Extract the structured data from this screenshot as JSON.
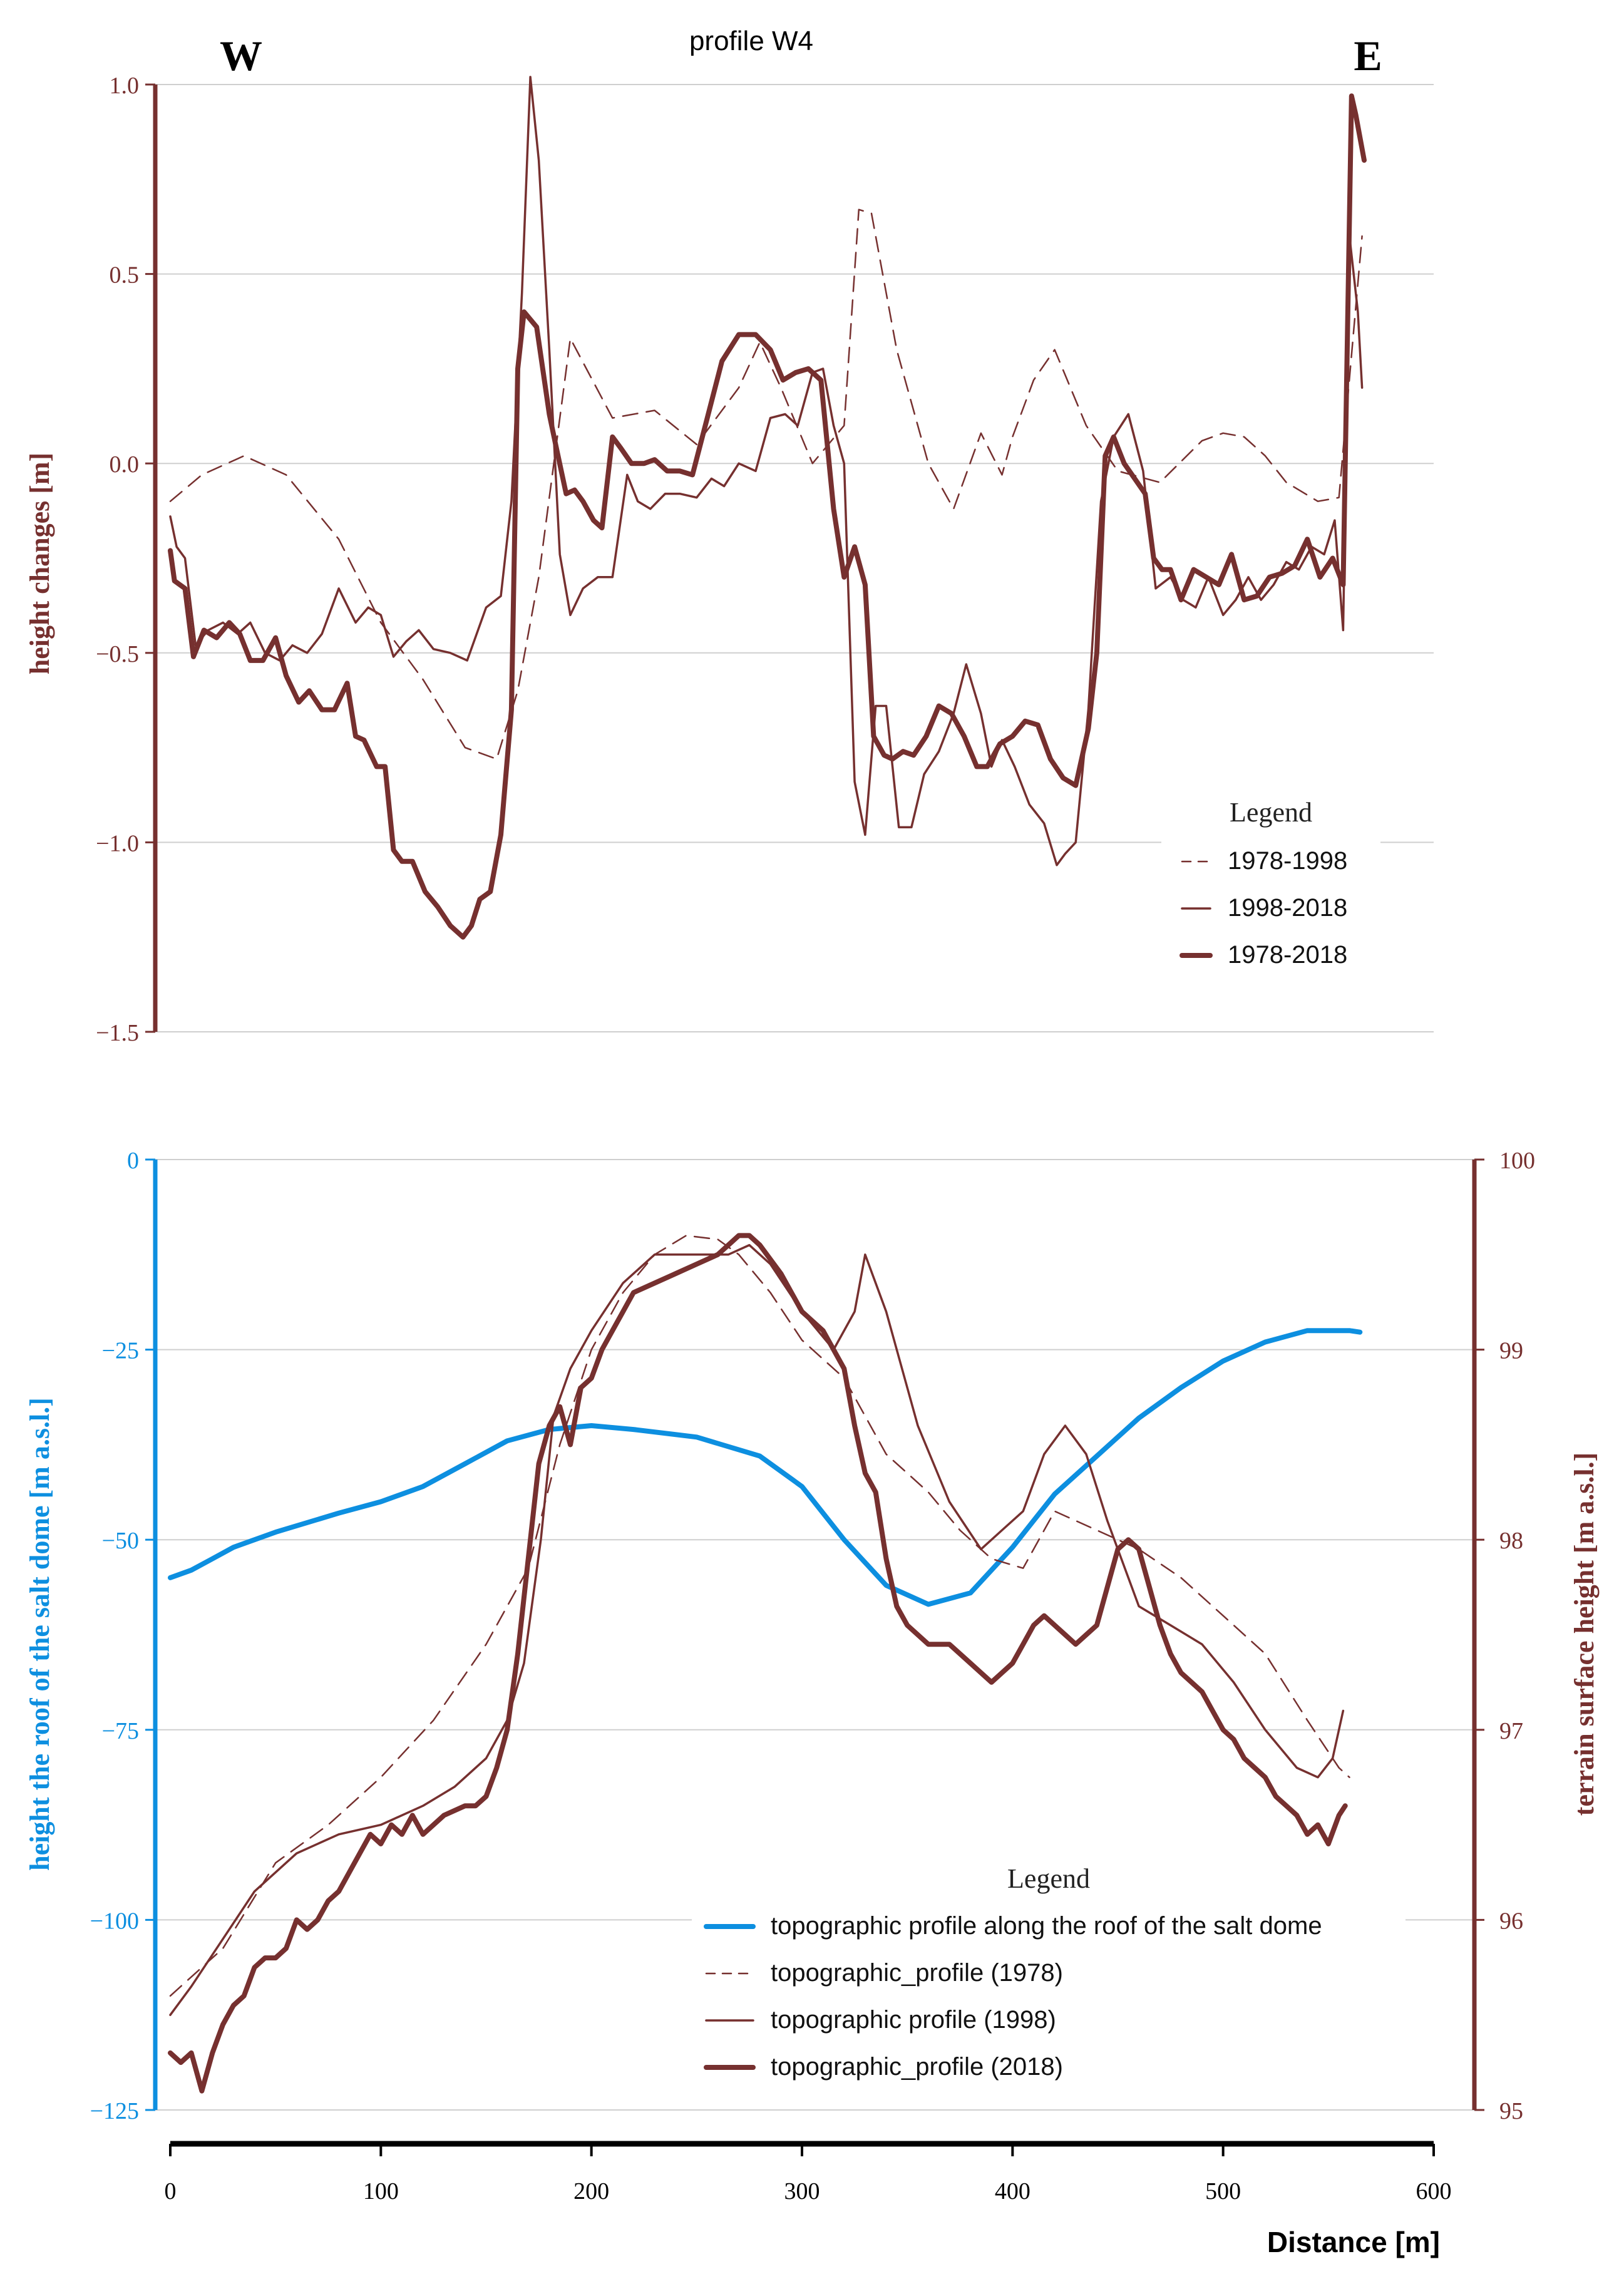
{
  "colors": {
    "brown": "#76302f",
    "blue": "#0d8fe0",
    "grid": "#cfcfcf",
    "axis": "#000000"
  },
  "chart_data": [
    {
      "type": "line",
      "title": "profile W4",
      "corner_left": "W",
      "corner_right": "E",
      "xlabel": "",
      "ylabel": "height changes [m]",
      "xlim": [
        0,
        600
      ],
      "ylim": [
        -1.5,
        1.0
      ],
      "yticks": [
        1.0,
        0.5,
        0.0,
        -0.5,
        -1.0,
        -1.5
      ],
      "ytick_labels": [
        "1.0",
        "0.5",
        "0.0",
        "−0.5",
        "−1.0",
        "−1.5"
      ],
      "legend": {
        "title": "Legend",
        "position": "lower-right"
      },
      "series": [
        {
          "name": "1978-1998",
          "style": "dashed",
          "x": [
            0,
            15,
            35,
            55,
            80,
            100,
            120,
            140,
            155,
            165,
            175,
            190,
            210,
            230,
            250,
            270,
            280,
            290,
            305,
            320,
            327,
            333,
            345,
            360,
            372,
            385,
            395,
            400,
            410,
            420,
            435,
            450,
            470,
            490,
            500,
            510,
            520,
            530,
            545,
            555,
            562,
            566
          ],
          "y": [
            -0.1,
            -0.03,
            0.02,
            -0.03,
            -0.2,
            -0.42,
            -0.57,
            -0.75,
            -0.78,
            -0.6,
            -0.3,
            0.33,
            0.12,
            0.14,
            0.05,
            0.2,
            0.32,
            0.2,
            0.0,
            0.1,
            0.67,
            0.66,
            0.3,
            0.0,
            -0.12,
            0.08,
            -0.03,
            0.07,
            0.22,
            0.3,
            0.1,
            -0.02,
            -0.05,
            0.06,
            0.08,
            0.07,
            0.02,
            -0.05,
            -0.1,
            -0.09,
            0.35,
            0.6
          ]
        },
        {
          "name": "1998-2018",
          "style": "solid",
          "x": [
            0,
            3,
            7,
            12,
            18,
            25,
            32,
            38,
            45,
            52,
            58,
            65,
            72,
            80,
            88,
            94,
            100,
            106,
            112,
            118,
            125,
            133,
            141,
            150,
            157,
            162,
            167,
            171,
            175,
            180,
            185,
            190,
            196,
            203,
            210,
            217,
            222,
            228,
            235,
            242,
            250,
            257,
            263,
            270,
            278,
            285,
            292,
            298,
            305,
            310,
            315,
            320,
            325,
            330,
            335,
            340,
            346,
            352,
            358,
            365,
            372,
            378,
            385,
            390,
            395,
            401,
            408,
            415,
            421,
            425,
            430,
            436,
            442,
            448,
            455,
            462,
            468,
            475,
            481,
            487,
            493,
            500,
            506,
            512,
            518,
            524,
            530,
            536,
            542,
            548,
            553,
            557,
            560,
            564,
            566
          ],
          "y": [
            -0.14,
            -0.22,
            -0.25,
            -0.48,
            -0.44,
            -0.42,
            -0.45,
            -0.42,
            -0.5,
            -0.52,
            -0.48,
            -0.5,
            -0.45,
            -0.33,
            -0.42,
            -0.38,
            -0.4,
            -0.51,
            -0.47,
            -0.44,
            -0.49,
            -0.5,
            -0.52,
            -0.38,
            -0.35,
            -0.1,
            0.45,
            1.02,
            0.8,
            0.3,
            -0.24,
            -0.4,
            -0.33,
            -0.3,
            -0.3,
            -0.03,
            -0.1,
            -0.12,
            -0.08,
            -0.08,
            -0.09,
            -0.04,
            -0.06,
            0.0,
            -0.02,
            0.12,
            0.13,
            0.1,
            0.24,
            0.25,
            0.1,
            0.0,
            -0.84,
            -0.98,
            -0.64,
            -0.64,
            -0.96,
            -0.96,
            -0.82,
            -0.76,
            -0.66,
            -0.53,
            -0.66,
            -0.8,
            -0.73,
            -0.8,
            -0.9,
            -0.95,
            -1.06,
            -1.03,
            -1.0,
            -0.65,
            -0.1,
            0.07,
            0.13,
            -0.02,
            -0.33,
            -0.3,
            -0.36,
            -0.38,
            -0.3,
            -0.4,
            -0.36,
            -0.3,
            -0.36,
            -0.32,
            -0.26,
            -0.28,
            -0.22,
            -0.24,
            -0.15,
            -0.44,
            0.6,
            0.4,
            0.2
          ]
        },
        {
          "name": "1978-2018",
          "style": "bold",
          "x": [
            0,
            2,
            7,
            11,
            16,
            22,
            28,
            33,
            38,
            44,
            50,
            55,
            61,
            66,
            72,
            78,
            84,
            88,
            92,
            98,
            102,
            106,
            110,
            115,
            121,
            127,
            133,
            139,
            143,
            147,
            152,
            157,
            162,
            165,
            168,
            171,
            174,
            180,
            183,
            188,
            192,
            196,
            201,
            205,
            210,
            214,
            219,
            225,
            230,
            236,
            242,
            248,
            255,
            262,
            270,
            278,
            285,
            291,
            297,
            303,
            309,
            315,
            320,
            325,
            330,
            334,
            339,
            343,
            348,
            353,
            359,
            365,
            371,
            377,
            383,
            388,
            394,
            400,
            406,
            412,
            418,
            424,
            430,
            436,
            440,
            444,
            448,
            453,
            458,
            463,
            467,
            471,
            475,
            480,
            486,
            492,
            498,
            504,
            510,
            516,
            522,
            528,
            534,
            540,
            546,
            552,
            557,
            561,
            563,
            567
          ],
          "y": [
            -0.23,
            -0.31,
            -0.33,
            -0.51,
            -0.44,
            -0.46,
            -0.42,
            -0.45,
            -0.52,
            -0.52,
            -0.46,
            -0.56,
            -0.63,
            -0.6,
            -0.65,
            -0.65,
            -0.58,
            -0.72,
            -0.73,
            -0.8,
            -0.8,
            -1.02,
            -1.05,
            -1.05,
            -1.13,
            -1.17,
            -1.22,
            -1.25,
            -1.22,
            -1.15,
            -1.13,
            -0.98,
            -0.65,
            0.25,
            0.4,
            0.38,
            0.36,
            0.13,
            0.05,
            -0.08,
            -0.07,
            -0.1,
            -0.15,
            -0.17,
            0.07,
            0.04,
            0.0,
            0.0,
            0.01,
            -0.02,
            -0.02,
            -0.03,
            0.12,
            0.27,
            0.34,
            0.34,
            0.3,
            0.22,
            0.24,
            0.25,
            0.22,
            -0.12,
            -0.3,
            -0.22,
            -0.32,
            -0.72,
            -0.77,
            -0.78,
            -0.76,
            -0.77,
            -0.72,
            -0.64,
            -0.66,
            -0.72,
            -0.8,
            -0.8,
            -0.74,
            -0.72,
            -0.68,
            -0.69,
            -0.78,
            -0.83,
            -0.85,
            -0.7,
            -0.5,
            0.02,
            0.07,
            0.0,
            -0.04,
            -0.08,
            -0.25,
            -0.28,
            -0.28,
            -0.36,
            -0.28,
            -0.3,
            -0.32,
            -0.24,
            -0.36,
            -0.35,
            -0.3,
            -0.29,
            -0.27,
            -0.2,
            -0.3,
            -0.25,
            -0.32,
            0.97,
            0.92,
            0.8
          ]
        }
      ]
    },
    {
      "type": "line",
      "xlabel": "Distance [m]",
      "xlim": [
        0,
        600
      ],
      "xticks": [
        0,
        100,
        200,
        300,
        400,
        500,
        600
      ],
      "ylabel_left": "height the roof of the salt dome [m a.s.l.]",
      "ylim_left": [
        -125,
        0
      ],
      "yticks_left": [
        0,
        -25,
        -50,
        -75,
        -100,
        -125
      ],
      "ytick_labels_left": [
        "0",
        "−25",
        "−50",
        "−75",
        "−100",
        "−125"
      ],
      "ylabel_right": "terrain surface height [m a.s.l.]",
      "ylim_right": [
        95,
        100
      ],
      "yticks_right": [
        100,
        99,
        98,
        97,
        96,
        95
      ],
      "legend": {
        "title": "Legend",
        "position": "lower-right"
      },
      "series": [
        {
          "name": "topographic profile along the roof of the salt dome",
          "axis": "left",
          "style": "blue",
          "x": [
            0,
            10,
            20,
            30,
            50,
            80,
            100,
            120,
            140,
            160,
            180,
            200,
            220,
            250,
            280,
            300,
            320,
            340,
            360,
            380,
            400,
            420,
            440,
            460,
            480,
            500,
            520,
            540,
            560,
            565
          ],
          "y": [
            -55,
            -54,
            -52.5,
            -51,
            -49,
            -46.5,
            -45,
            -43,
            -40,
            -37,
            -35.5,
            -35,
            -35.5,
            -36.5,
            -39,
            -43,
            -50,
            -56,
            -58.5,
            -57,
            -51,
            -44,
            -39,
            -34,
            -30,
            -26.5,
            -24,
            -22.5,
            -22.5,
            -22.7
          ]
        },
        {
          "name": "topographic_profile (1978)",
          "axis": "right",
          "style": "dashed",
          "x": [
            0,
            25,
            50,
            75,
            100,
            125,
            150,
            170,
            185,
            200,
            215,
            230,
            245,
            260,
            270,
            285,
            300,
            320,
            340,
            360,
            375,
            390,
            405,
            420,
            440,
            460,
            480,
            500,
            520,
            540,
            555,
            560
          ],
          "y": [
            95.6,
            95.85,
            96.3,
            96.5,
            96.75,
            97.05,
            97.45,
            97.85,
            98.5,
            99.0,
            99.3,
            99.5,
            99.6,
            99.58,
            99.5,
            99.3,
            99.05,
            98.85,
            98.45,
            98.25,
            98.05,
            97.9,
            97.85,
            98.15,
            98.05,
            97.95,
            97.8,
            97.6,
            97.4,
            97.05,
            96.8,
            96.75
          ]
        },
        {
          "name": "topographic profile (1998)",
          "axis": "right",
          "style": "solid",
          "x": [
            0,
            10,
            25,
            40,
            60,
            80,
            100,
            120,
            135,
            150,
            160,
            168,
            176,
            182,
            190,
            200,
            215,
            230,
            250,
            265,
            275,
            285,
            300,
            315,
            325,
            330,
            340,
            355,
            370,
            385,
            395,
            405,
            415,
            425,
            435,
            445,
            460,
            475,
            490,
            505,
            520,
            535,
            545,
            552,
            557
          ],
          "y": [
            95.5,
            95.65,
            95.9,
            96.15,
            96.35,
            96.45,
            96.5,
            96.6,
            96.7,
            96.85,
            97.05,
            97.35,
            98.0,
            98.65,
            98.9,
            99.1,
            99.35,
            99.5,
            99.5,
            99.5,
            99.55,
            99.45,
            99.2,
            99.0,
            99.2,
            99.5,
            99.2,
            98.6,
            98.2,
            97.95,
            98.05,
            98.15,
            98.45,
            98.6,
            98.45,
            98.1,
            97.65,
            97.55,
            97.45,
            97.25,
            97.0,
            96.8,
            96.75,
            96.85,
            97.1
          ]
        },
        {
          "name": "topographic_profile (2018)",
          "axis": "right",
          "style": "bold",
          "x": [
            0,
            5,
            10,
            15,
            20,
            25,
            30,
            35,
            40,
            45,
            50,
            55,
            60,
            65,
            70,
            75,
            80,
            85,
            90,
            95,
            100,
            105,
            110,
            115,
            120,
            130,
            140,
            145,
            150,
            155,
            160,
            165,
            170,
            175,
            180,
            185,
            190,
            195,
            200,
            205,
            210,
            215,
            220,
            230,
            240,
            250,
            260,
            265,
            270,
            275,
            280,
            290,
            300,
            310,
            320,
            325,
            330,
            335,
            340,
            345,
            350,
            360,
            370,
            380,
            390,
            395,
            400,
            405,
            410,
            415,
            420,
            425,
            430,
            435,
            440,
            445,
            450,
            455,
            460,
            465,
            470,
            475,
            480,
            485,
            490,
            495,
            500,
            505,
            510,
            515,
            520,
            525,
            530,
            535,
            540,
            545,
            550,
            555,
            558
          ],
          "y": [
            95.3,
            95.25,
            95.3,
            95.1,
            95.3,
            95.45,
            95.55,
            95.6,
            95.75,
            95.8,
            95.8,
            95.85,
            96.0,
            95.95,
            96.0,
            96.1,
            96.15,
            96.25,
            96.35,
            96.45,
            96.4,
            96.5,
            96.45,
            96.55,
            96.45,
            96.55,
            96.6,
            96.6,
            96.65,
            96.8,
            97.0,
            97.4,
            97.9,
            98.4,
            98.6,
            98.7,
            98.5,
            98.8,
            98.85,
            99.0,
            99.1,
            99.2,
            99.3,
            99.35,
            99.4,
            99.45,
            99.5,
            99.55,
            99.6,
            99.6,
            99.55,
            99.4,
            99.2,
            99.1,
            98.9,
            98.6,
            98.35,
            98.25,
            97.9,
            97.65,
            97.55,
            97.45,
            97.45,
            97.35,
            97.25,
            97.3,
            97.35,
            97.45,
            97.55,
            97.6,
            97.55,
            97.5,
            97.45,
            97.5,
            97.55,
            97.75,
            97.95,
            98.0,
            97.95,
            97.75,
            97.55,
            97.4,
            97.3,
            97.25,
            97.2,
            97.1,
            97.0,
            96.95,
            96.85,
            96.8,
            96.75,
            96.65,
            96.6,
            96.55,
            96.45,
            96.5,
            96.4,
            96.55,
            96.6
          ]
        }
      ]
    }
  ]
}
